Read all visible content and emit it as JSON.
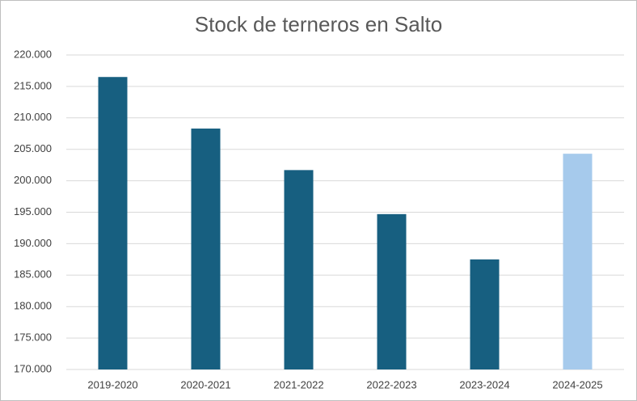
{
  "chart_data": {
    "type": "bar",
    "title": "Stock de terneros en Salto",
    "categories": [
      "2019-2020",
      "2020-2021",
      "2021-2022",
      "2022-2023",
      "2023-2024",
      "2024-2025"
    ],
    "values": [
      216500,
      208300,
      201700,
      194700,
      187500,
      204300
    ],
    "colors": [
      "#175f80",
      "#175f80",
      "#175f80",
      "#175f80",
      "#175f80",
      "#a6caec"
    ],
    "ylim": [
      170000,
      220000
    ],
    "yticks": [
      {
        "value": 170000,
        "label": "170.000"
      },
      {
        "value": 175000,
        "label": "175.000"
      },
      {
        "value": 180000,
        "label": "180.000"
      },
      {
        "value": 185000,
        "label": "185.000"
      },
      {
        "value": 190000,
        "label": "190.000"
      },
      {
        "value": 195000,
        "label": "195.000"
      },
      {
        "value": 200000,
        "label": "200.000"
      },
      {
        "value": 205000,
        "label": "205.000"
      },
      {
        "value": 210000,
        "label": "210.000"
      },
      {
        "value": 215000,
        "label": "215.000"
      },
      {
        "value": 220000,
        "label": "220.000"
      }
    ],
    "grid": true
  }
}
